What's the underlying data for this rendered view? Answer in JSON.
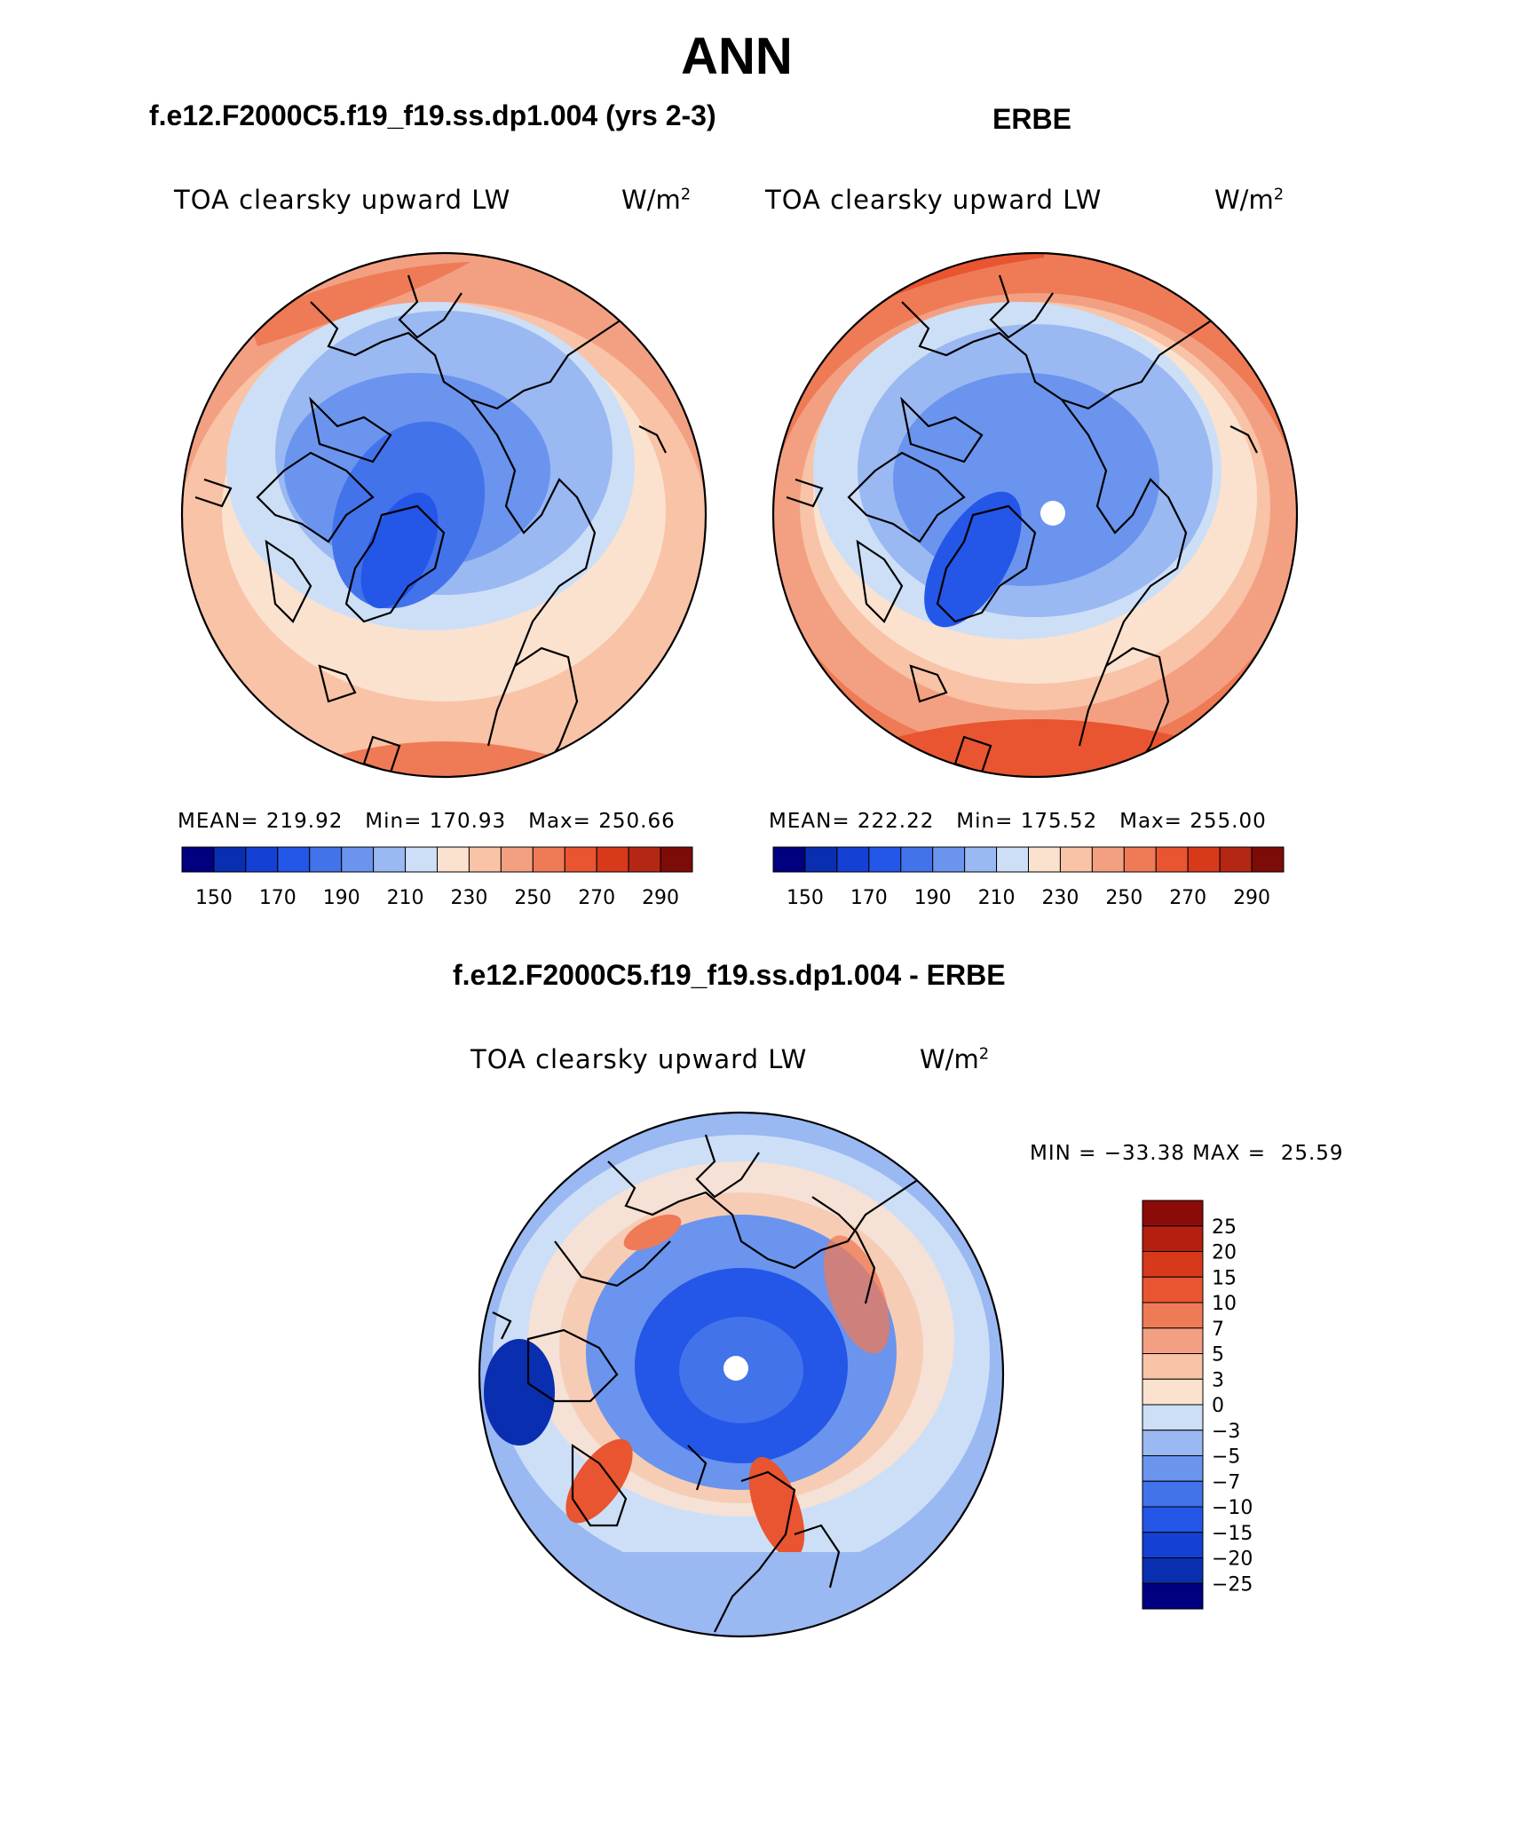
{
  "title": "ANN",
  "panels": [
    {
      "run_label": "f.e12.F2000C5.f19_f19.ss.dp1.004 (yrs 2-3)",
      "variable": "TOA clearsky upward LW",
      "units": "W/m",
      "units_sup": "2",
      "stats": {
        "mean": "219.92",
        "min": "170.93",
        "max": "250.66"
      },
      "stats_text": "MEAN= 219.92   Min= 170.93   Max= 250.66"
    },
    {
      "run_label": "ERBE",
      "variable": "TOA clearsky upward LW",
      "units": "W/m",
      "units_sup": "2",
      "stats": {
        "mean": "222.22",
        "min": "175.52",
        "max": "255.00"
      },
      "stats_text": "MEAN= 222.22   Min= 175.52   Max= 255.00"
    }
  ],
  "diff_panel": {
    "run_label": "f.e12.F2000C5.f19_f19.ss.dp1.004 - ERBE",
    "variable": "TOA clearsky upward LW",
    "units": "W/m",
    "units_sup": "2",
    "stats_text": "MIN = −33.38 MAX =  25.59"
  },
  "abs_colorbar": {
    "tick_labels": [
      "150",
      "170",
      "190",
      "210",
      "230",
      "250",
      "270",
      "290"
    ],
    "colors": [
      "#000080",
      "#0a2eb0",
      "#1540d4",
      "#2456e8",
      "#4273ea",
      "#6a94ee",
      "#9ab8f2",
      "#cddff7",
      "#fbe2cf",
      "#f8c3a7",
      "#f3a082",
      "#ef7a56",
      "#e85530",
      "#d63a1b",
      "#b52715",
      "#7d0b07"
    ]
  },
  "diff_colorbar": {
    "tick_labels": [
      "25",
      "20",
      "15",
      "10",
      "7",
      "5",
      "3",
      "0",
      "−3",
      "−5",
      "−7",
      "−10",
      "−15",
      "−20",
      "−25"
    ],
    "colors_top_to_bottom": [
      "#8a0b08",
      "#b41f10",
      "#d63a1b",
      "#e85530",
      "#ef7a56",
      "#f3a082",
      "#f8c3a7",
      "#fbe2cf",
      "#cddff7",
      "#9ab8f2",
      "#6a94ee",
      "#4273ea",
      "#2456e8",
      "#1540d4",
      "#0a2eb0",
      "#000080"
    ]
  }
}
